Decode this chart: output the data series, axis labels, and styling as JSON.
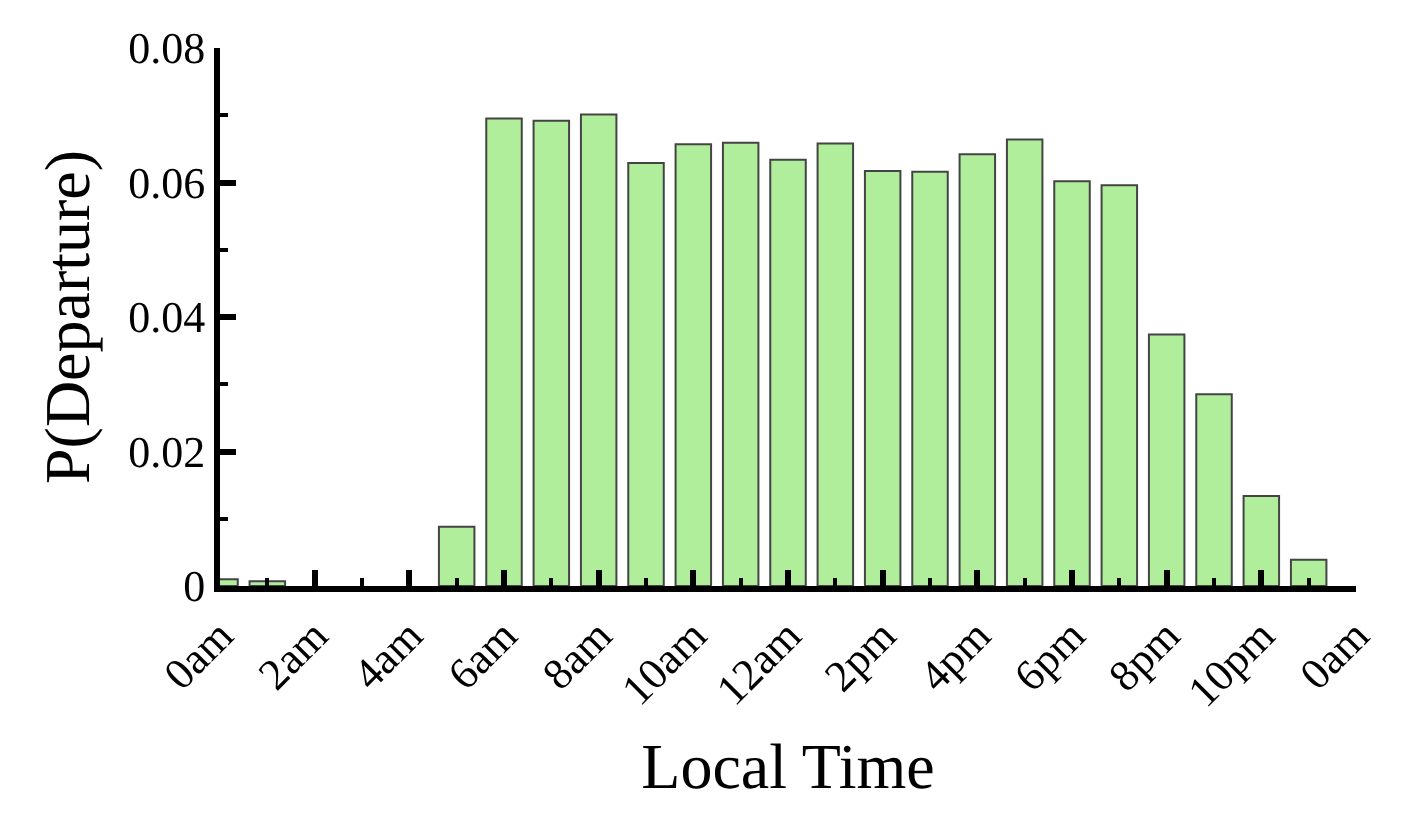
{
  "chart_data": {
    "type": "bar",
    "xlabel": "Local Time",
    "ylabel": "P(Departure)",
    "categories": [
      "0am",
      null,
      "2am",
      null,
      "4am",
      null,
      "6am",
      null,
      "8am",
      null,
      "10am",
      null,
      "12am",
      null,
      "2pm",
      null,
      "4pm",
      null,
      "6pm",
      null,
      "8pm",
      null,
      "10pm",
      null,
      "0am"
    ],
    "series": [
      {
        "color": "#b0ee9c",
        "values": [
          0.001,
          0.0007,
          0,
          0,
          0,
          0.0088,
          0.0695,
          0.0692,
          0.0701,
          0.0629,
          0.0657,
          0.0659,
          0.0634,
          0.0658,
          0.0617,
          0.0616,
          0.0642,
          0.0664,
          0.0602,
          0.0596,
          0.0374,
          0.0285,
          0.0134,
          0.0039,
          null
        ]
      }
    ],
    "ylim": [
      0,
      0.08
    ],
    "yticks": [
      0,
      {
        "value": 0.01,
        "label": null
      },
      0.02,
      {
        "value": 0.03,
        "label": null
      },
      0.04,
      {
        "value": 0.05,
        "label": null
      },
      0.06,
      {
        "value": 0.07,
        "label": null
      },
      0.08
    ]
  }
}
